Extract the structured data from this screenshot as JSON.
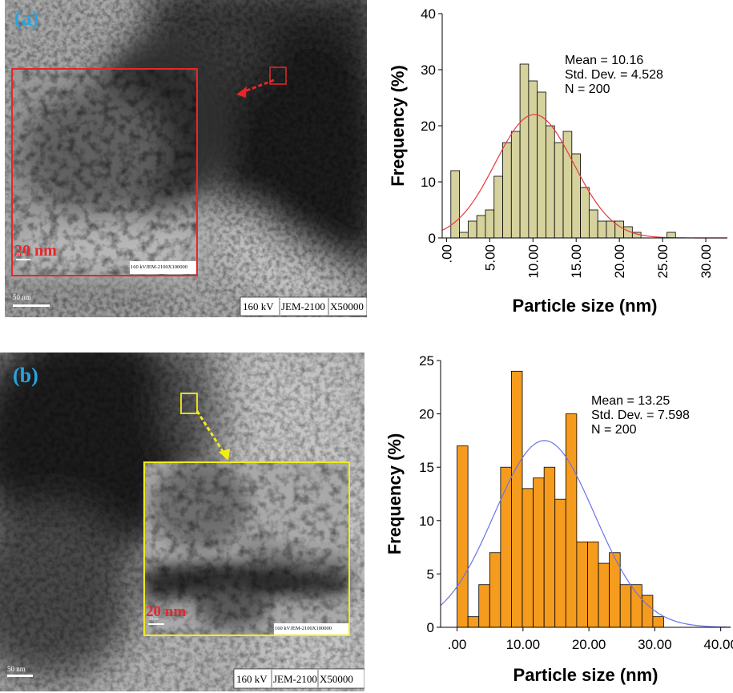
{
  "panels": [
    {
      "label": "(a)",
      "label_color": "#2aa3e0",
      "inset_color": "#e8262a",
      "arrow_color": "#e8262a",
      "inset_scale_label": "20 nm",
      "inset_scale_small": "20 nm",
      "inset_info": "160 kVJEM-2100X100000",
      "main_scale_label": "50 nm",
      "info_kv": "160 kV",
      "info_model": "JEM-2100",
      "info_mag": "X50000"
    },
    {
      "label": "(b)",
      "label_color": "#2aa3e0",
      "inset_color": "#f2ec1c",
      "arrow_color": "#f2ec1c",
      "inset_scale_label": "20 nm",
      "inset_scale_small": "20 nm",
      "inset_info": "160 kVJEM-2100X100000",
      "main_scale_label": "50 nm",
      "info_kv": "160 kV",
      "info_model": "JEM-2100",
      "info_mag": "X50000"
    }
  ],
  "chart_data": [
    {
      "type": "bar",
      "subtype": "histogram-with-normal-fit",
      "bar_color": "#d5d29d",
      "curve_color": "#e8383d",
      "xlabel": "Particle size (nm)",
      "ylabel": "Frequency (%)",
      "xlim": [
        -0.5,
        32.5
      ],
      "ylim": [
        0,
        40
      ],
      "x_ticks": [
        ".00",
        "5.00",
        "10.00",
        "15.00",
        "20.00",
        "25.00",
        "30.00"
      ],
      "x_tick_values": [
        0,
        5,
        10,
        15,
        20,
        25,
        30
      ],
      "y_ticks": [
        "0",
        "10",
        "20",
        "30",
        "40"
      ],
      "y_tick_values": [
        0,
        10,
        20,
        30,
        40
      ],
      "bin_start": 0.5,
      "bin_width": 1,
      "values": [
        12,
        1,
        3,
        4,
        5,
        11,
        17,
        19,
        31,
        28,
        26,
        20,
        17,
        19,
        15,
        9,
        5,
        3,
        3,
        3,
        2,
        1,
        0,
        0,
        0,
        1
      ],
      "stats": {
        "mean": "Mean = 10.16",
        "std": "Std. Dev. = 4.528",
        "n": "N = 200"
      },
      "fit_mean": 10.16,
      "fit_std": 4.528,
      "fit_peak": 22
    },
    {
      "type": "bar",
      "subtype": "histogram-with-normal-fit",
      "bar_color": "#f59b1e",
      "curve_color": "#6b74e6",
      "xlabel": "Particle size (nm)",
      "ylabel": "Frequency (%)",
      "xlim": [
        -2.5,
        41.5
      ],
      "ylim": [
        0,
        25
      ],
      "x_ticks": [
        ".00",
        "10.00",
        "20.00",
        "30.00",
        "40.00"
      ],
      "x_tick_values": [
        0,
        10,
        20,
        30,
        40
      ],
      "y_ticks": [
        "0",
        "5",
        "10",
        "15",
        "20",
        "25"
      ],
      "y_tick_values": [
        0,
        5,
        10,
        15,
        20,
        25
      ],
      "bin_start": 0,
      "bin_width": 1.65,
      "values": [
        17,
        1,
        4,
        7,
        15,
        24,
        13,
        14,
        15,
        12,
        20,
        8,
        8,
        6,
        7,
        4,
        4,
        3,
        1
      ],
      "stats": {
        "mean": "Mean = 13.25",
        "std": "Std. Dev. = 7.598",
        "n": "N = 200"
      },
      "fit_mean": 13.25,
      "fit_std": 7.598,
      "fit_peak": 17.5
    }
  ]
}
